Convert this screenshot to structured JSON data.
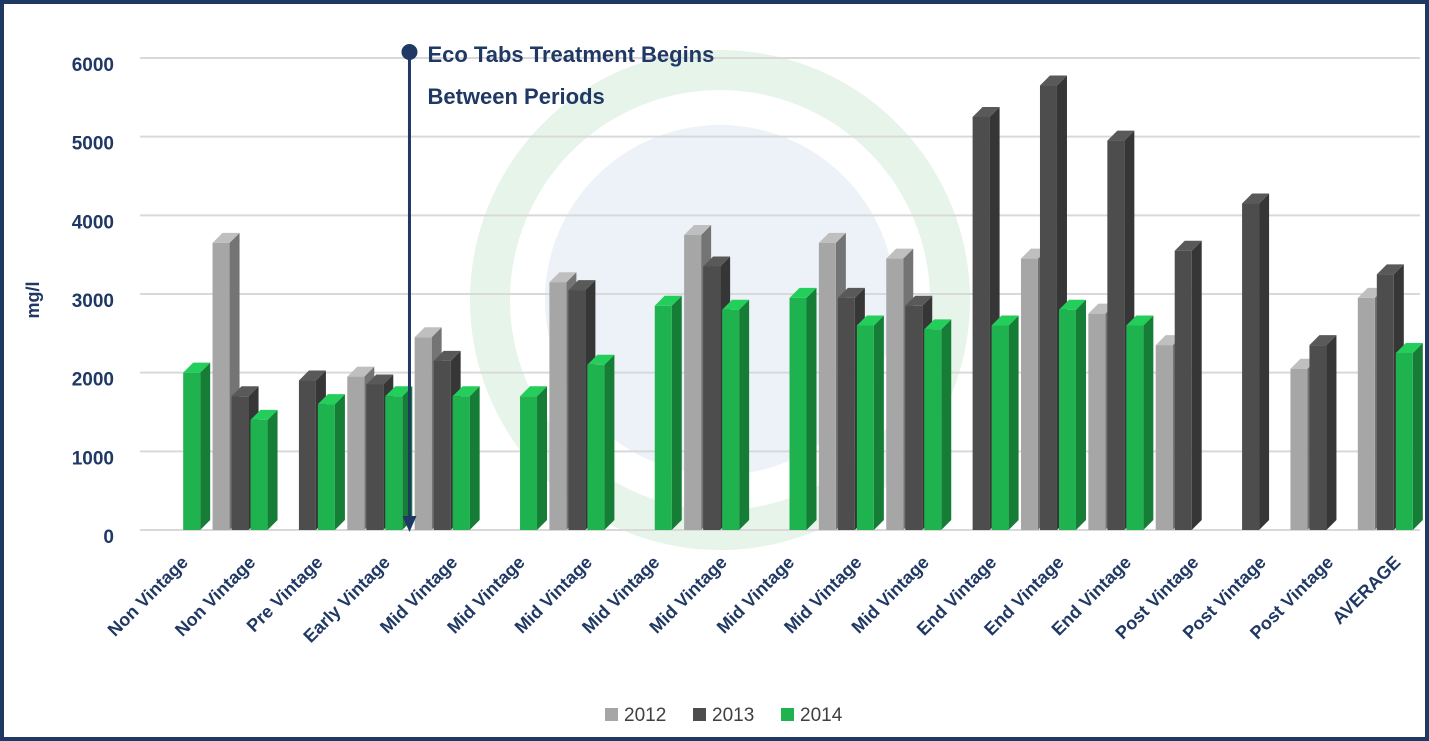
{
  "chart_data": {
    "type": "bar",
    "y_label": "mg/l",
    "annotation": [
      "Eco Tabs Treatment Begins",
      "Between Periods"
    ],
    "categories": [
      "Non Vintage",
      "Non Vintage",
      "Pre Vintage",
      "Early Vintage",
      "Mid Vintage",
      "Mid Vintage",
      "Mid Vintage",
      "Mid Vintage",
      "Mid Vintage",
      "Mid Vintage",
      "Mid Vintage",
      "Mid Vintage",
      "End Vintage",
      "End Vintage",
      "End Vintage",
      "Post Vintage",
      "Post Vintage",
      "Post Vintage",
      "AVERAGE"
    ],
    "series": [
      {
        "name": "2012",
        "color": "#a6a6a6",
        "values": [
          null,
          3650,
          null,
          1950,
          2450,
          null,
          3150,
          null,
          3750,
          null,
          3650,
          3450,
          null,
          3450,
          2750,
          2350,
          null,
          2050,
          2950
        ]
      },
      {
        "name": "2013",
        "color": "#4d4d4d",
        "values": [
          null,
          1700,
          1900,
          1850,
          2150,
          null,
          3050,
          null,
          3350,
          null,
          2950,
          2850,
          5250,
          5650,
          4950,
          3550,
          4150,
          2350,
          3250
        ]
      },
      {
        "name": "2014",
        "color": "#1fb34f",
        "values": [
          2000,
          1400,
          1600,
          1700,
          1700,
          1700,
          2100,
          2850,
          2800,
          2950,
          2600,
          2550,
          2600,
          2800,
          2600,
          null,
          null,
          null,
          2250
        ]
      }
    ],
    "ylim": [
      0,
      6000
    ],
    "yticks": [
      0,
      1000,
      2000,
      3000,
      4000,
      5000,
      6000
    ],
    "grid": true
  }
}
